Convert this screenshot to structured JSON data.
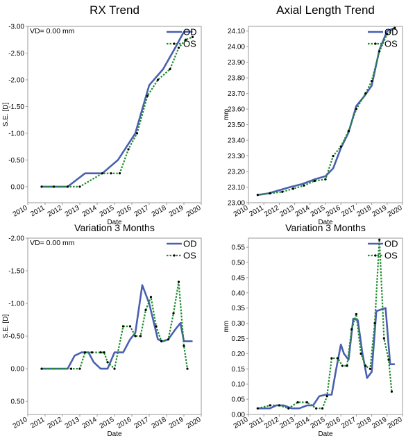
{
  "colors": {
    "od": "#4a5fb0",
    "os": "#1e8c2a",
    "marker": "#000000",
    "axis": "#999999"
  },
  "chart_data": [
    {
      "type": "line",
      "title": "RX Trend",
      "xlabel": "Date",
      "ylabel": "S.E. [D]",
      "note": "VD= 0.00 mm",
      "xlim": [
        2010,
        2020
      ],
      "xticks": [
        "2010",
        "2011",
        "2012",
        "2013",
        "2014",
        "2015",
        "2016",
        "2017",
        "2018",
        "2019",
        "2020"
      ],
      "ylim": [
        0.3,
        -3.0
      ],
      "yticks": [
        "-3.00",
        "-2.50",
        "-2.00",
        "-1.50",
        "-1.00",
        "-0.50",
        "0.00"
      ],
      "legend": [
        "OD",
        "OS"
      ],
      "legend_position": "top-right",
      "series": [
        {
          "name": "OD",
          "x": [
            2010.8,
            2012.3,
            2013.3,
            2014.3,
            2015.2,
            2016.2,
            2017.0,
            2017.8,
            2018.5,
            2019.0,
            2019.5
          ],
          "y": [
            0,
            0,
            -0.25,
            -0.25,
            -0.5,
            -1.0,
            -1.9,
            -2.2,
            -2.6,
            -2.9,
            -2.9
          ]
        },
        {
          "name": "OS",
          "x": [
            2010.8,
            2011.5,
            2012.3,
            2013.0,
            2014.3,
            2014.8,
            2015.3,
            2015.8,
            2016.3,
            2016.9,
            2017.5,
            2018.2,
            2018.7,
            2019.1,
            2019.5
          ],
          "y": [
            0,
            0,
            0,
            0,
            -0.25,
            -0.25,
            -0.25,
            -0.7,
            -1.0,
            -1.7,
            -2.0,
            -2.2,
            -2.6,
            -2.75,
            -2.8
          ]
        }
      ]
    },
    {
      "type": "line",
      "title": "Axial Length Trend",
      "xlabel": "Date",
      "ylabel": "mm",
      "xlim": [
        2010,
        2020
      ],
      "xticks": [
        "2010",
        "2011",
        "2012",
        "2013",
        "2014",
        "2015",
        "2016",
        "2017",
        "2018",
        "2019",
        "2020"
      ],
      "ylim": [
        23.0,
        24.13
      ],
      "yticks": [
        "24.10",
        "24.00",
        "23.90",
        "23.80",
        "23.70",
        "23.60",
        "23.50",
        "23.40",
        "23.30",
        "23.20",
        "23.10",
        "23.00"
      ],
      "legend": [
        "OD",
        "OS"
      ],
      "legend_position": "top-right",
      "series": [
        {
          "name": "OD",
          "x": [
            2010.6,
            2011.3,
            2012.0,
            2012.7,
            2013.5,
            2014.3,
            2015.0,
            2015.5,
            2016.0,
            2016.5,
            2017.0,
            2017.5,
            2018.0,
            2018.5,
            2019.0,
            2019.5
          ],
          "y": [
            23.05,
            23.06,
            23.08,
            23.1,
            23.12,
            23.15,
            23.17,
            23.22,
            23.35,
            23.45,
            23.62,
            23.68,
            23.75,
            23.98,
            24.1,
            24.12
          ]
        },
        {
          "name": "OS",
          "x": [
            2010.6,
            2011.4,
            2012.2,
            2012.9,
            2013.6,
            2014.3,
            2015.0,
            2015.5,
            2016.0,
            2016.5,
            2017.0,
            2017.6,
            2018.0,
            2018.5,
            2019.0,
            2019.5
          ],
          "y": [
            23.05,
            23.06,
            23.07,
            23.09,
            23.11,
            23.14,
            23.15,
            23.3,
            23.36,
            23.46,
            23.6,
            23.7,
            23.78,
            23.97,
            24.08,
            24.12
          ]
        }
      ]
    },
    {
      "type": "line",
      "title": "Variation 3 Months",
      "xlabel": "Date",
      "ylabel": "S.E. [D]",
      "note": "VD= 0.00 mm",
      "xlim": [
        2010,
        2020
      ],
      "xticks": [
        "2010",
        "2011",
        "2012",
        "2013",
        "2014",
        "2015",
        "2016",
        "2017",
        "2018",
        "2019",
        "2020"
      ],
      "ylim": [
        0.7,
        -2.0
      ],
      "yticks": [
        "-2.00",
        "-1.50",
        "-1.00",
        "-0.50",
        "0.00",
        "0.50"
      ],
      "legend": [
        "OD",
        "OS"
      ],
      "legend_position": "top-right",
      "series": [
        {
          "name": "OD",
          "x": [
            2010.8,
            2012.3,
            2012.7,
            2013.1,
            2013.5,
            2013.8,
            2014.2,
            2014.6,
            2015.0,
            2015.5,
            2015.9,
            2016.2,
            2016.6,
            2017.0,
            2017.5,
            2017.8,
            2018.1,
            2018.5,
            2018.8,
            2019.0,
            2019.5
          ],
          "y": [
            0,
            0,
            -0.2,
            -0.25,
            -0.25,
            -0.1,
            0,
            0,
            -0.25,
            -0.25,
            -0.45,
            -0.55,
            -1.28,
            -1.0,
            -0.45,
            -0.42,
            -0.45,
            -0.6,
            -0.7,
            -0.42,
            -0.42
          ]
        },
        {
          "name": "OS",
          "x": [
            2010.8,
            2012.5,
            2013.0,
            2013.3,
            2013.7,
            2014.2,
            2014.4,
            2014.6,
            2015.0,
            2015.5,
            2015.9,
            2016.2,
            2016.5,
            2016.8,
            2017.1,
            2017.4,
            2017.7,
            2018.1,
            2018.4,
            2018.7,
            2019.0,
            2019.2
          ],
          "y": [
            0,
            0,
            0,
            -0.25,
            -0.25,
            -0.25,
            -0.25,
            -0.1,
            0,
            -0.65,
            -0.65,
            -0.5,
            -0.5,
            -0.9,
            -1.1,
            -0.65,
            -0.42,
            -0.45,
            -0.85,
            -1.33,
            -0.35,
            0
          ]
        }
      ]
    },
    {
      "type": "line",
      "title": "Variation 3 Months",
      "xlabel": "Date",
      "ylabel": "mm",
      "xlim": [
        2010,
        2020
      ],
      "xticks": [
        "2010",
        "2011",
        "2012",
        "2013",
        "2014",
        "2015",
        "2016",
        "2017",
        "2018",
        "2019",
        "2020"
      ],
      "ylim": [
        0.0,
        0.58
      ],
      "yticks": [
        "0.55",
        "0.50",
        "0.45",
        "0.40",
        "0.35",
        "0.30",
        "0.25",
        "0.20",
        "0.15",
        "0.10",
        "0.05",
        "0.00"
      ],
      "legend": [
        "OD",
        "OS"
      ],
      "legend_position": "top-right",
      "series": [
        {
          "name": "OD",
          "x": [
            2010.6,
            2011.4,
            2011.8,
            2012.3,
            2012.8,
            2013.3,
            2013.8,
            2014.2,
            2014.6,
            2015.0,
            2015.4,
            2015.7,
            2016.0,
            2016.2,
            2016.5,
            2016.8,
            2017.1,
            2017.4,
            2017.7,
            2018.0,
            2018.3,
            2018.6,
            2018.9,
            2019.2,
            2019.5
          ],
          "y": [
            0.02,
            0.02,
            0.03,
            0.03,
            0.02,
            0.02,
            0.03,
            0.03,
            0.06,
            0.065,
            0.065,
            0.15,
            0.23,
            0.2,
            0.18,
            0.315,
            0.31,
            0.2,
            0.12,
            0.14,
            0.34,
            0.345,
            0.35,
            0.165,
            0.165
          ]
        },
        {
          "name": "OS",
          "x": [
            2010.6,
            2011.4,
            2012.0,
            2012.6,
            2013.2,
            2013.8,
            2014.4,
            2014.8,
            2015.1,
            2015.4,
            2015.8,
            2016.1,
            2016.4,
            2016.7,
            2017.0,
            2017.3,
            2017.6,
            2017.9,
            2018.2,
            2018.5,
            2018.8,
            2019.1,
            2019.3
          ],
          "y": [
            0.02,
            0.03,
            0.03,
            0.02,
            0.04,
            0.04,
            0.02,
            0.02,
            0.06,
            0.185,
            0.185,
            0.16,
            0.16,
            0.28,
            0.33,
            0.2,
            0.16,
            0.15,
            0.3,
            0.575,
            0.25,
            0.18,
            0.075
          ]
        }
      ]
    }
  ]
}
